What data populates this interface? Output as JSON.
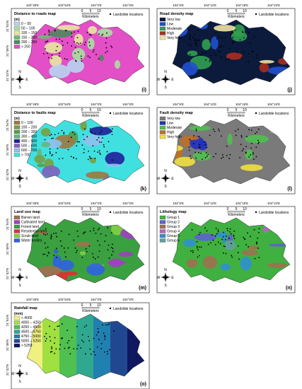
{
  "longitudes_left": [
    "103°48'E",
    "103°54'E",
    "104°0'E",
    "104°6'E"
  ],
  "longitudes_right": [
    "104°6'E",
    "104°12'E",
    "104°18'E",
    "104°24'E"
  ],
  "latitudes": [
    "21°54'N",
    "21°48'N",
    "21°42'N"
  ],
  "scale": {
    "ticks": [
      "0",
      "5",
      "10"
    ],
    "unit": "Kilometers"
  },
  "points_label": "Landslide locations",
  "north_arrow": {
    "n": "N",
    "s": "S",
    "e": "E",
    "w": "W"
  },
  "panels": [
    {
      "label": "(i)",
      "title": "Distance to roads map",
      "legend_title": "(m)",
      "items": [
        {
          "name": "0 – 50",
          "color": "#b8d4f0"
        },
        {
          "name": "50 – 100",
          "color": "#a8e0a0"
        },
        {
          "name": "100 – 150",
          "color": "#e8e8a0"
        },
        {
          "name": "150 – 200",
          "color": "#70b870"
        },
        {
          "name": "200 – 250",
          "color": "#4a8a5a"
        },
        {
          "name": "> 250",
          "color": "#e24fc6"
        }
      ]
    },
    {
      "label": "(j)",
      "title": "Road density map",
      "legend_title": null,
      "items": [
        {
          "name": "Very low",
          "color": "#0c1a3c"
        },
        {
          "name": "Low",
          "color": "#2050d0"
        },
        {
          "name": "Moderate",
          "color": "#30a050"
        },
        {
          "name": "High",
          "color": "#a83020"
        },
        {
          "name": "Very high",
          "color": "#f2e2a0"
        }
      ]
    },
    {
      "label": "(k)",
      "title": "Distance to faults map",
      "legend_title": "(m)",
      "items": [
        {
          "name": "0 – 100",
          "color": "#a07840"
        },
        {
          "name": "100 – 200",
          "color": "#78a040"
        },
        {
          "name": "200 – 300",
          "color": "#50a050"
        },
        {
          "name": "300 – 400",
          "color": "#60b880"
        },
        {
          "name": "400 – 500",
          "color": "#20209a"
        },
        {
          "name": "500 – 600",
          "color": "#8060c0"
        },
        {
          "name": "600 – 700",
          "color": "#90c0f0"
        },
        {
          "name": "> 700",
          "color": "#40e0e0"
        }
      ]
    },
    {
      "label": "(l)",
      "title": "Fault density map",
      "legend_title": null,
      "items": [
        {
          "name": "Very low",
          "color": "#7a7a7a"
        },
        {
          "name": "Low",
          "color": "#2030c0"
        },
        {
          "name": "Moderate",
          "color": "#50c050"
        },
        {
          "name": "High",
          "color": "#c07020"
        },
        {
          "name": "Very high",
          "color": "#f0e040"
        }
      ]
    },
    {
      "label": "(m)",
      "title": "Land use map",
      "legend_title": null,
      "items": [
        {
          "name": "Barren land",
          "color": "#a07050"
        },
        {
          "name": "Cultivated land",
          "color": "#a040c0"
        },
        {
          "name": "Forest land",
          "color": "#3aa040"
        },
        {
          "name": "Residential area",
          "color": "#e03030"
        },
        {
          "name": "Scrub land",
          "color": "#80d040"
        },
        {
          "name": "Water bodies",
          "color": "#3060e0"
        }
      ]
    },
    {
      "label": "(n)",
      "title": "Lithology map",
      "legend_title": null,
      "items": [
        {
          "name": "Group 1",
          "color": "#40b040"
        },
        {
          "name": "Group 2",
          "color": "#6060d0"
        },
        {
          "name": "Group 3",
          "color": "#a07050"
        },
        {
          "name": "Group 4",
          "color": "#c060c0"
        },
        {
          "name": "Group 5",
          "color": "#3090d0"
        },
        {
          "name": "Group 6",
          "color": "#60a0a0"
        }
      ]
    },
    {
      "label": "(o)",
      "title": "Rainfall map",
      "legend_title": "(mm)",
      "items": [
        {
          "name": "< 4000",
          "color": "#f0f080"
        },
        {
          "name": "4000 – 4250",
          "color": "#a0e040"
        },
        {
          "name": "4250 – 4500",
          "color": "#50c050"
        },
        {
          "name": "4500 – 4750",
          "color": "#30a890"
        },
        {
          "name": "4750 – 5000",
          "color": "#2080b0"
        },
        {
          "name": "5000 – 5250",
          "color": "#204890"
        },
        {
          "name": "> 5250",
          "color": "#101860"
        }
      ]
    }
  ]
}
